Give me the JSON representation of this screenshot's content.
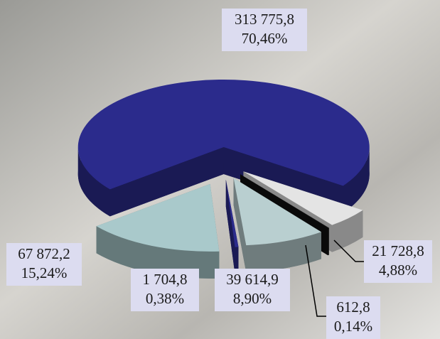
{
  "chart_data": {
    "type": "pie",
    "values": [
      313775.8,
      21728.8,
      612.8,
      39614.9,
      1704.8,
      67872.2
    ],
    "value_labels": [
      "313 775,8",
      "21 728,8",
      "612,8",
      "39 614,9",
      "1 704,8",
      "67 872,2"
    ],
    "shares": [
      70.46,
      4.88,
      0.14,
      8.9,
      0.38,
      15.24
    ],
    "share_labels": [
      "70,46%",
      "4,88%",
      "0,14%",
      "8,90%",
      "0,38%",
      "15,24%"
    ],
    "colors": [
      "#2b2b8c",
      "#e4e4e4",
      "#111111",
      "#b9cfd0",
      "#2b2b8c",
      "#a9c9cb"
    ]
  }
}
